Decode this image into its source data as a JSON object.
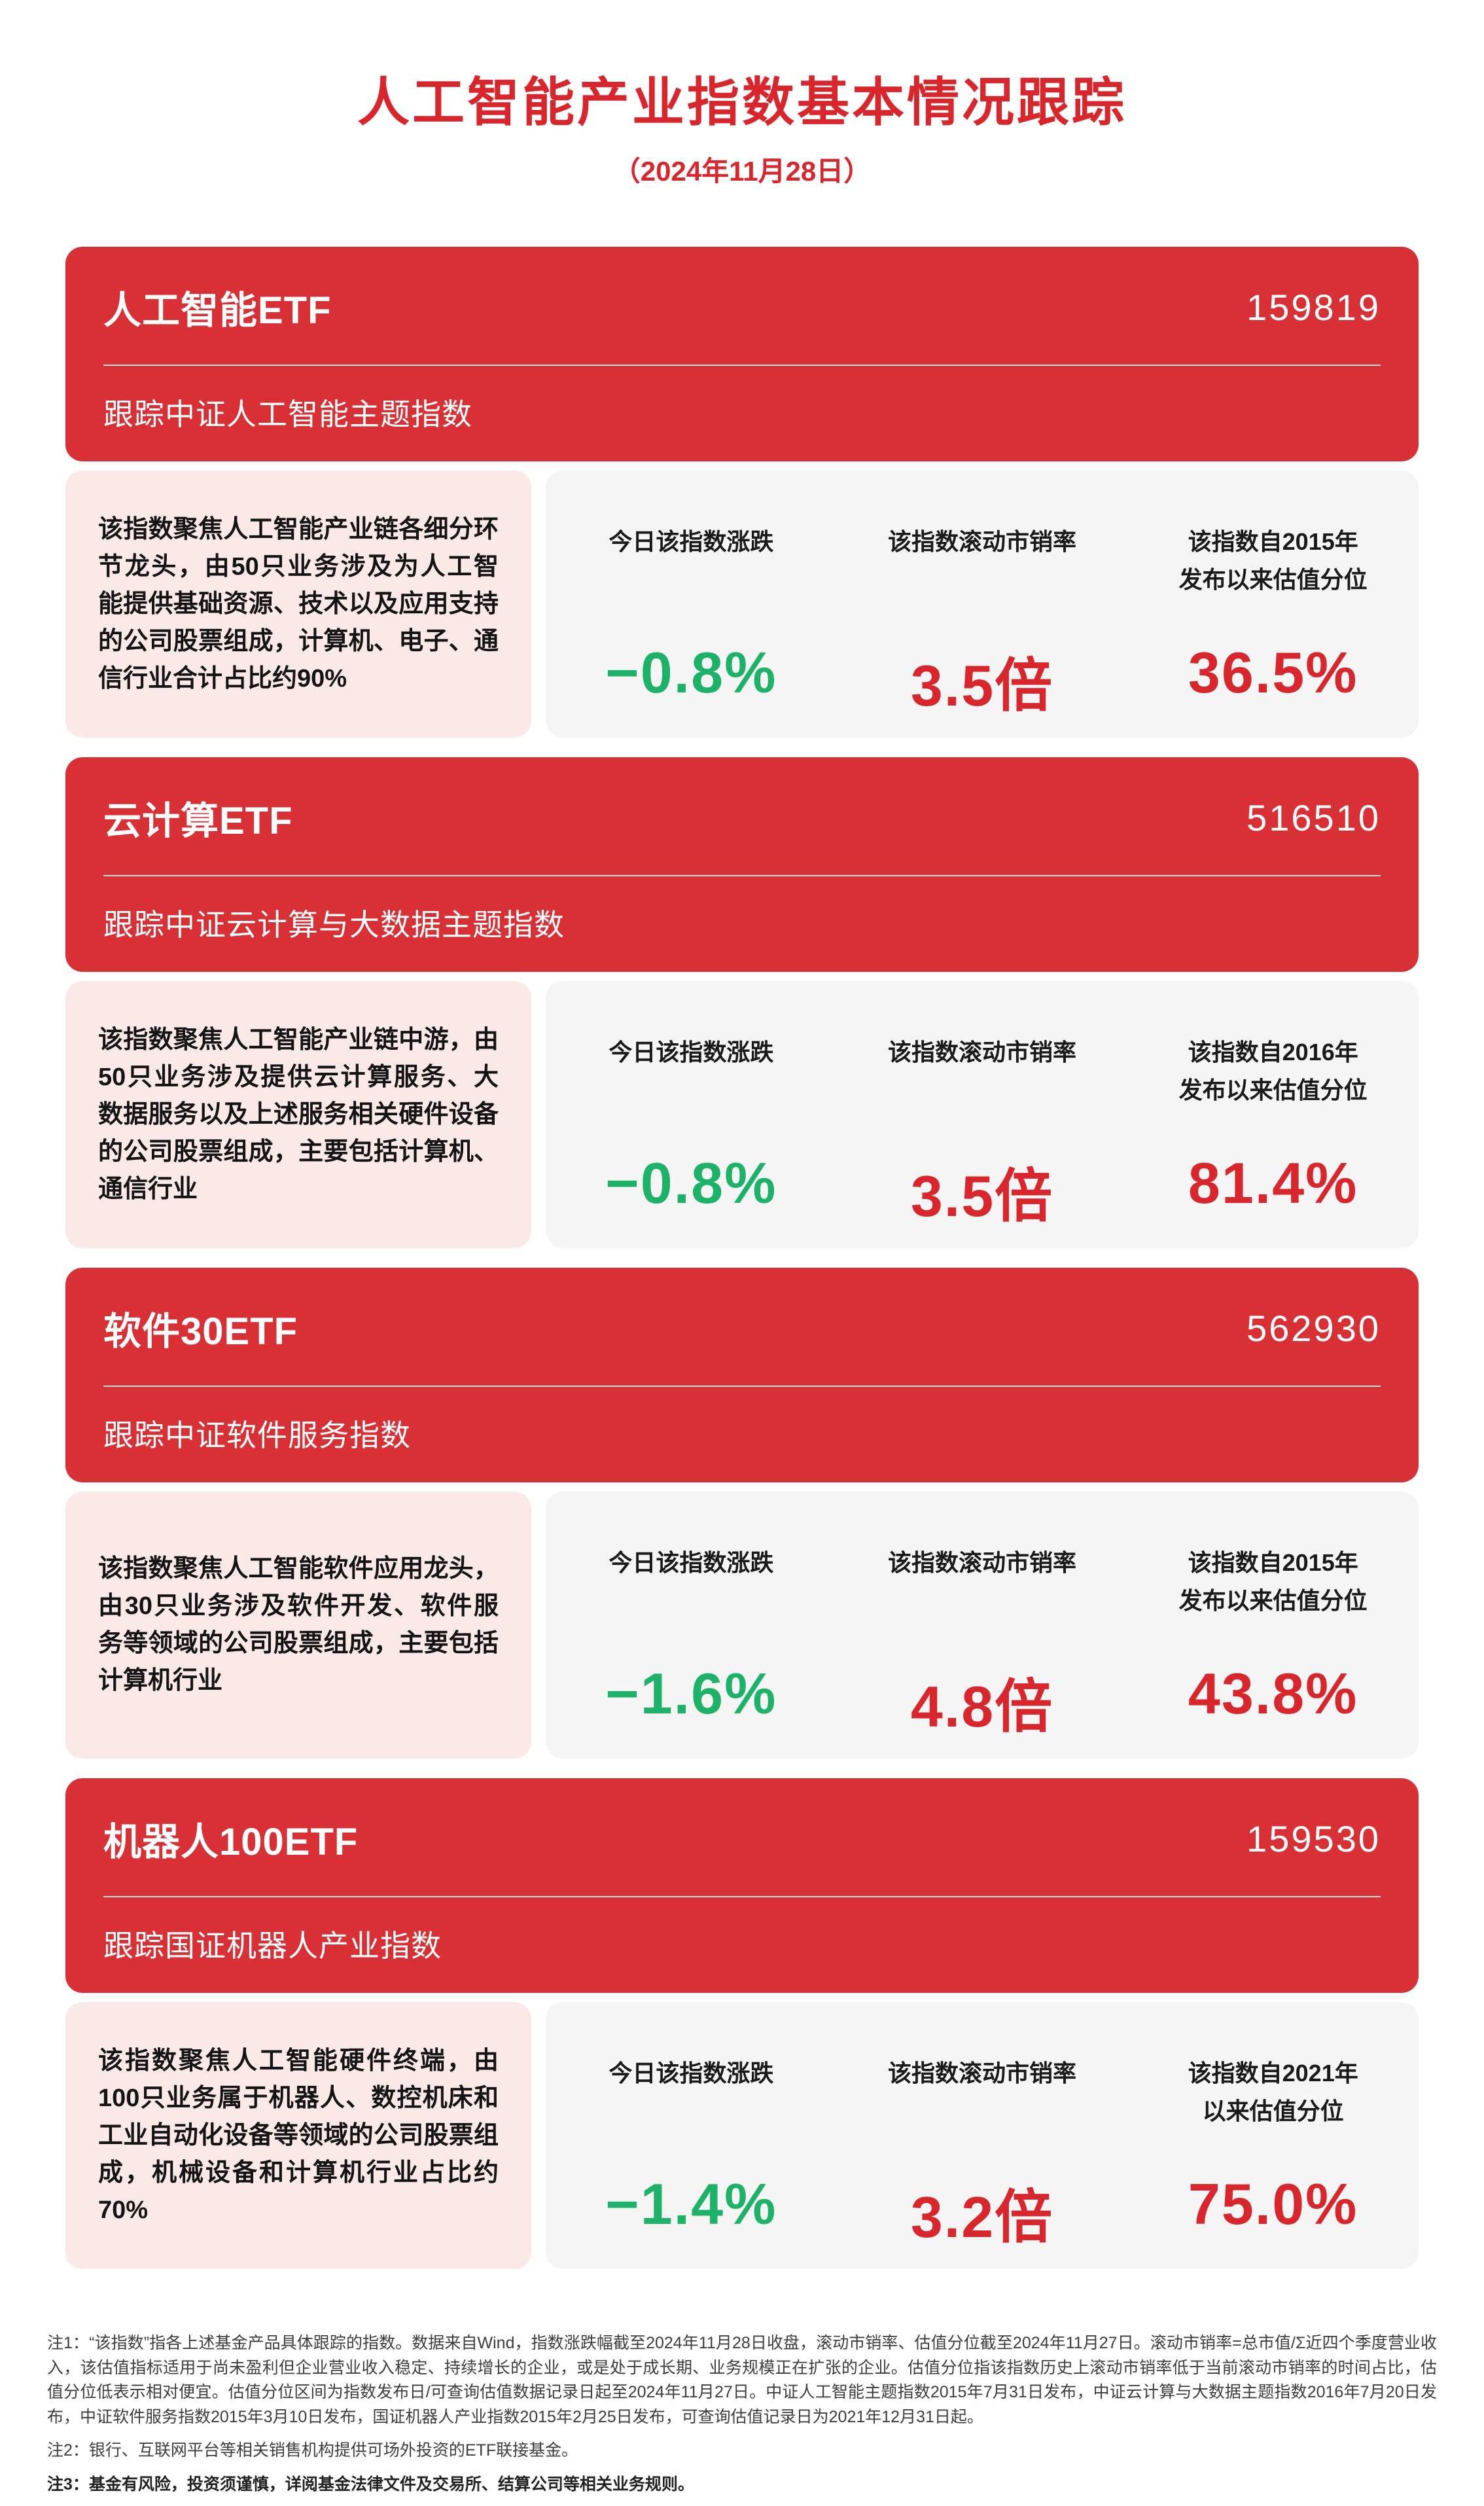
{
  "page": {
    "title": "人工智能产业指数基本情况跟踪",
    "date": "（2024年11月28日）"
  },
  "colors": {
    "brand_red": "#d9262c",
    "card_red": "#d93036",
    "pink": "#fbe9e8",
    "panel_gray": "#f5f5f6",
    "green": "#1cb268",
    "footnote_gray": "#3d3d3d"
  },
  "cards": [
    {
      "name": "人工智能ETF",
      "code": "159819",
      "tracking": "跟踪中证人工智能主题指数",
      "description": "该指数聚焦人工智能产业链各细分环节龙头，由50只业务涉及为人工智能提供基础资源、技术以及应用支持的公司股票组成，计算机、电子、通信行业合计占比约90%",
      "metrics": [
        {
          "label": "今日该指数涨跌",
          "value": "−0.8%"
        },
        {
          "label": "该指数滚动市销率",
          "value": "3.5倍"
        },
        {
          "label": "该指数自2015年\n发布以来估值分位",
          "value": "36.5%"
        }
      ]
    },
    {
      "name": "云计算ETF",
      "code": "516510",
      "tracking": "跟踪中证云计算与大数据主题指数",
      "description": "该指数聚焦人工智能产业链中游，由50只业务涉及提供云计算服务、大数据服务以及上述服务相关硬件设备的公司股票组成，主要包括计算机、通信行业",
      "metrics": [
        {
          "label": "今日该指数涨跌",
          "value": "−0.8%"
        },
        {
          "label": "该指数滚动市销率",
          "value": "3.5倍"
        },
        {
          "label": "该指数自2016年\n发布以来估值分位",
          "value": "81.4%"
        }
      ]
    },
    {
      "name": "软件30ETF",
      "code": "562930",
      "tracking": "跟踪中证软件服务指数",
      "description": "该指数聚焦人工智能软件应用龙头，由30只业务涉及软件开发、软件服务等领域的公司股票组成，主要包括计算机行业",
      "metrics": [
        {
          "label": "今日该指数涨跌",
          "value": "−1.6%"
        },
        {
          "label": "该指数滚动市销率",
          "value": "4.8倍"
        },
        {
          "label": "该指数自2015年\n发布以来估值分位",
          "value": "43.8%"
        }
      ]
    },
    {
      "name": "机器人100ETF",
      "code": "159530",
      "tracking": "跟踪国证机器人产业指数",
      "description": "该指数聚焦人工智能硬件终端，由100只业务属于机器人、数控机床和工业自动化设备等领域的公司股票组成，机械设备和计算机行业占比约70%",
      "metrics": [
        {
          "label": "今日该指数涨跌",
          "value": "−1.4%"
        },
        {
          "label": "该指数滚动市销率",
          "value": "3.2倍"
        },
        {
          "label": "该指数自2021年\n以来估值分位",
          "value": "75.0%"
        }
      ]
    }
  ],
  "footnotes": {
    "note1": "注1：“该指数”指各上述基金产品具体跟踪的指数。数据来自Wind，指数涨跌幅截至2024年11月28日收盘，滚动市销率、估值分位截至2024年11月27日。滚动市销率=总市值/Σ近四个季度营业收入，该估值指标适用于尚未盈利但企业营业收入稳定、持续增长的企业，或是处于成长期、业务规模正在扩张的企业。估值分位指该指数历史上滚动市销率低于当前滚动市销率的时间占比，估值分位低表示相对便宜。估值分位区间为指数发布日/可查询估值数据记录日起至2024年11月27日。中证人工智能主题指数2015年7月31日发布，中证云计算与大数据主题指数2016年7月20日发布，中证软件服务指数2015年3月10日发布，国证机器人产业指数2015年2月25日发布，可查询估值记录日为2021年12月31日起。",
    "note2": "注2：银行、互联网平台等相关销售机构提供可场外投资的ETF联接基金。",
    "note3": "注3：基金有风险，投资须谨慎，详阅基金法律文件及交易所、结算公司等相关业务规则。"
  }
}
